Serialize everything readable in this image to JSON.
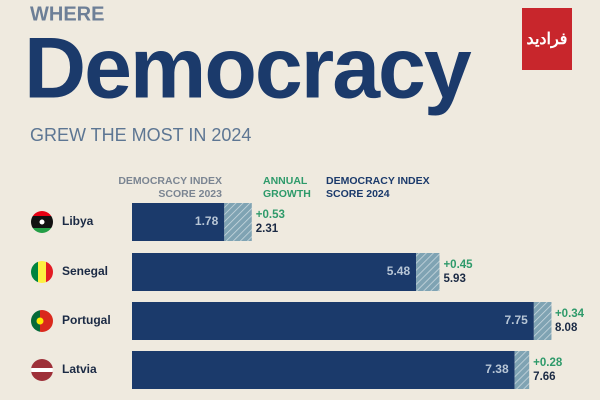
{
  "chart_data": {
    "type": "bar",
    "orientation": "horizontal",
    "stacked": true,
    "pretitle": "WHERE",
    "title": "Democracy",
    "subtitle": "GREW THE MOST IN 2024",
    "watermark": "فرادید",
    "categories": [
      "Libya",
      "Senegal",
      "Portugal",
      "Latvia"
    ],
    "series": [
      {
        "name": "DEMOCRACY INDEX SCORE 2023",
        "color": "#1b3a6b",
        "values": [
          1.78,
          5.48,
          7.75,
          7.38
        ]
      },
      {
        "name": "ANNUAL GROWTH",
        "color": "#7fa3b3",
        "values": [
          0.53,
          0.45,
          0.34,
          0.28
        ],
        "value_labels": [
          "+0.53",
          "+0.45",
          "+0.34",
          "+0.28"
        ]
      }
    ],
    "totals": {
      "name": "DEMOCRACY INDEX SCORE 2024",
      "values": [
        2.31,
        5.93,
        8.08,
        7.66
      ]
    },
    "xlim": [
      0,
      8.1
    ]
  }
}
